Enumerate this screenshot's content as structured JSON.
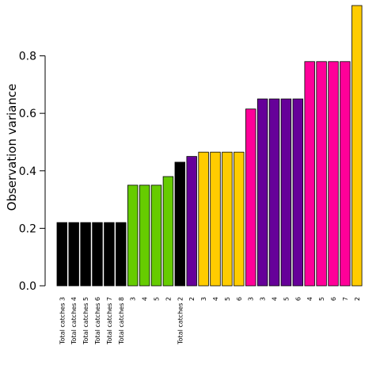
{
  "chart_data": {
    "type": "bar",
    "title": "",
    "xlabel": "",
    "ylabel": "Observation variance",
    "ylim": [
      0,
      0.975
    ],
    "yticks": [
      0.0,
      0.2,
      0.4,
      0.6,
      0.8
    ],
    "ytick_labels": [
      "0.0",
      "0.2",
      "0.4",
      "0.6",
      "0.8"
    ],
    "grid": false,
    "legend": "none",
    "categories": [
      "Total catches 3",
      "Total catches 4",
      "Total catches 5",
      "Total catches 6",
      "Total catches 7",
      "Total catches 8",
      "3",
      "4",
      "5",
      "2",
      "Total catches 2",
      "2",
      "3",
      "4",
      "5",
      "6",
      "3",
      "3",
      "4",
      "5",
      "6",
      "4",
      "5",
      "6",
      "7",
      "2"
    ],
    "values": [
      0.22,
      0.22,
      0.22,
      0.22,
      0.22,
      0.22,
      0.35,
      0.35,
      0.35,
      0.38,
      0.43,
      0.45,
      0.465,
      0.465,
      0.465,
      0.465,
      0.615,
      0.65,
      0.65,
      0.65,
      0.65,
      0.78,
      0.78,
      0.78,
      0.78,
      0.975
    ],
    "colors": [
      "#000000",
      "#000000",
      "#000000",
      "#000000",
      "#000000",
      "#000000",
      "#66cc00",
      "#66cc00",
      "#66cc00",
      "#66cc00",
      "#000000",
      "#660099",
      "#ffcc00",
      "#ffcc00",
      "#ffcc00",
      "#ffcc00",
      "#ff0099",
      "#660099",
      "#660099",
      "#660099",
      "#660099",
      "#ff0099",
      "#ff0099",
      "#ff0099",
      "#ff0099",
      "#ffcc00"
    ]
  }
}
